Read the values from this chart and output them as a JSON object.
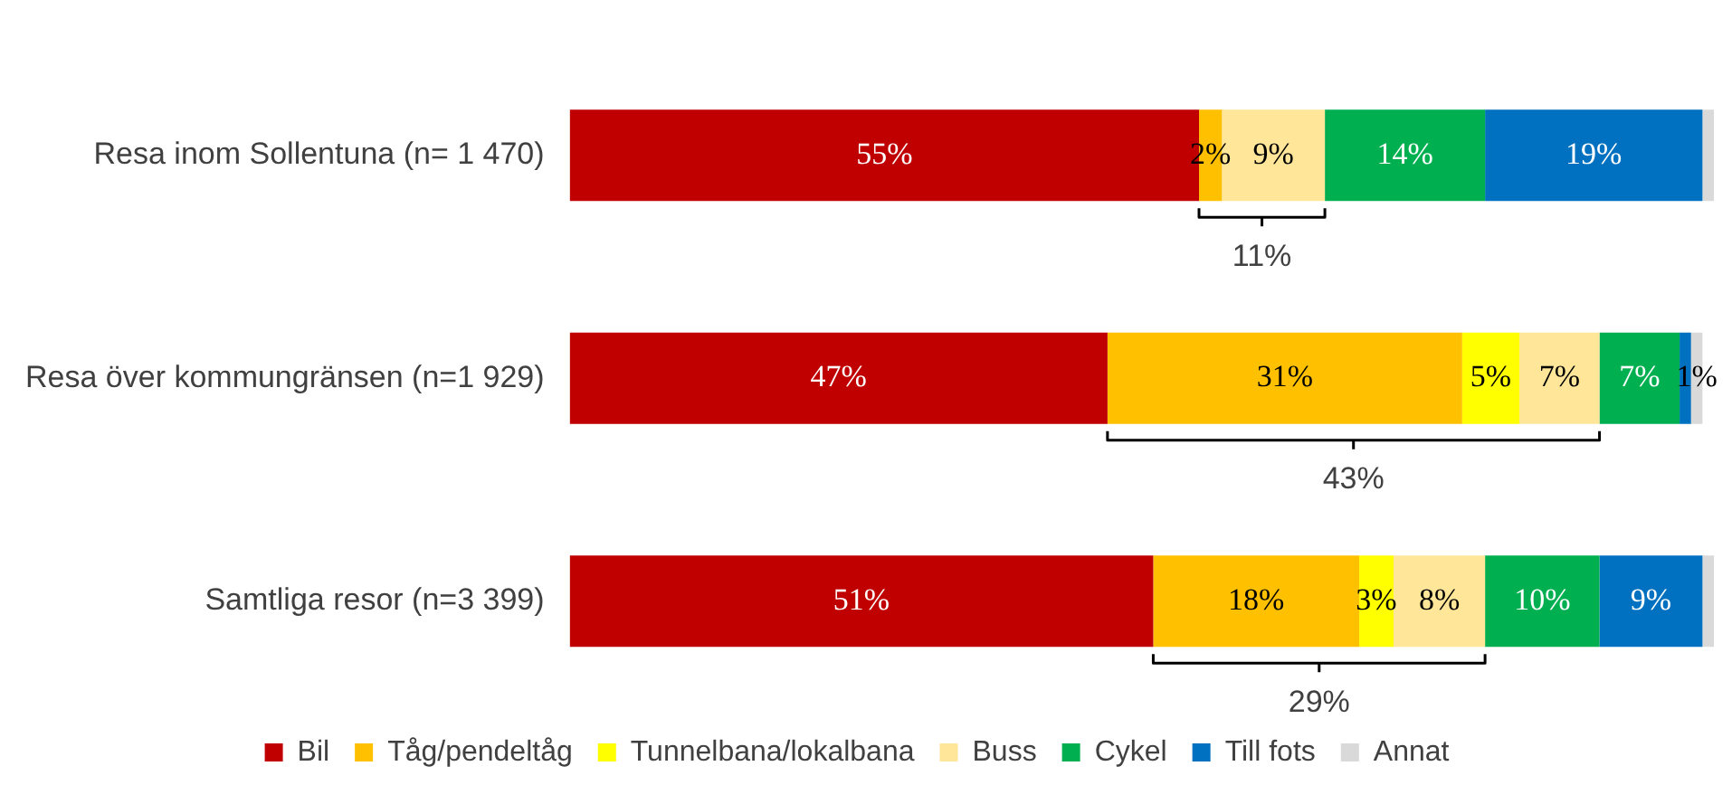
{
  "chart_data": {
    "type": "bar",
    "orientation": "horizontal",
    "stacked": true,
    "legend": "bottom",
    "grid": false,
    "categories": [
      "Resa inom Sollentuna (n= 1 470)",
      "Resa över kommungränsen (n=1 929)",
      "Samtliga resor (n=3 399)"
    ],
    "series": [
      {
        "name": "Bil",
        "color": "#c00000",
        "values": [
          55,
          47,
          51
        ],
        "value_labels": [
          "55%",
          "47%",
          "51%"
        ]
      },
      {
        "name": "Tåg/pendeltåg",
        "color": "#ffc000",
        "values": [
          2,
          31,
          18
        ],
        "value_labels": [
          "2%",
          "31%",
          "18%"
        ]
      },
      {
        "name": "Tunnelbana/lokalbana",
        "color": "#ffff00",
        "values": [
          0,
          5,
          3
        ],
        "value_labels": [
          null,
          "5%",
          "3%"
        ]
      },
      {
        "name": "Buss",
        "color": "#ffe699",
        "values": [
          9,
          7,
          8
        ],
        "value_labels": [
          "9%",
          "7%",
          "8%"
        ]
      },
      {
        "name": "Cykel",
        "color": "#00b050",
        "values": [
          14,
          7,
          10
        ],
        "value_labels": [
          "14%",
          "7%",
          "10%"
        ]
      },
      {
        "name": "Till fots",
        "color": "#0070c0",
        "values": [
          19,
          1,
          9
        ],
        "value_labels": [
          "19%",
          null,
          "9%"
        ]
      },
      {
        "name": "Annat",
        "color": "#d9d9d9",
        "values": [
          1,
          1,
          1
        ],
        "value_labels": [
          null,
          "1%",
          null
        ]
      }
    ],
    "annotations": [
      "11%",
      "43%",
      "29%"
    ]
  }
}
